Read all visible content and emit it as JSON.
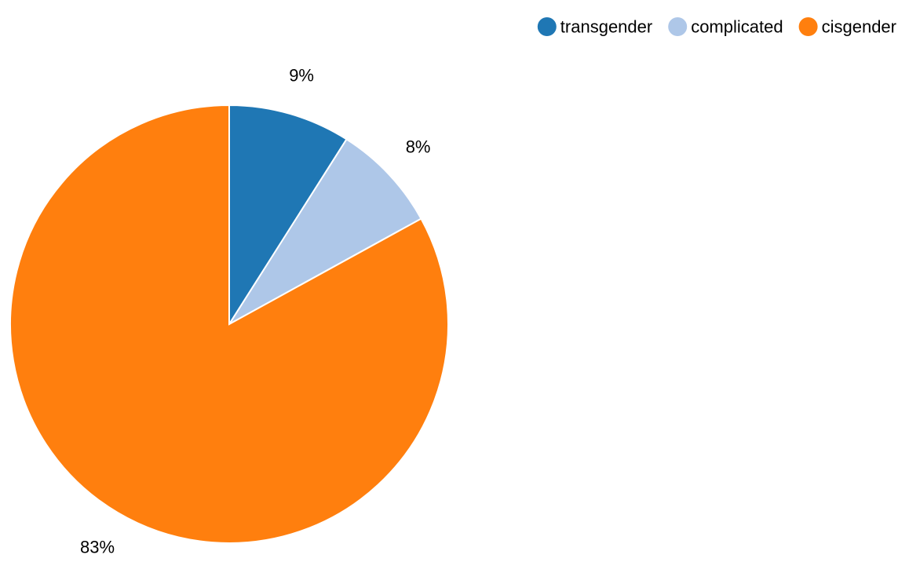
{
  "chart_data": {
    "type": "pie",
    "legend_position": "top-right",
    "slices": [
      {
        "label": "transgender",
        "value": 9,
        "display": "9%",
        "color": "#1f77b4"
      },
      {
        "label": "complicated",
        "value": 8,
        "display": "8%",
        "color": "#aec7e8"
      },
      {
        "label": "cisgender",
        "value": 83,
        "display": "83%",
        "color": "#ff7f0e"
      }
    ]
  }
}
